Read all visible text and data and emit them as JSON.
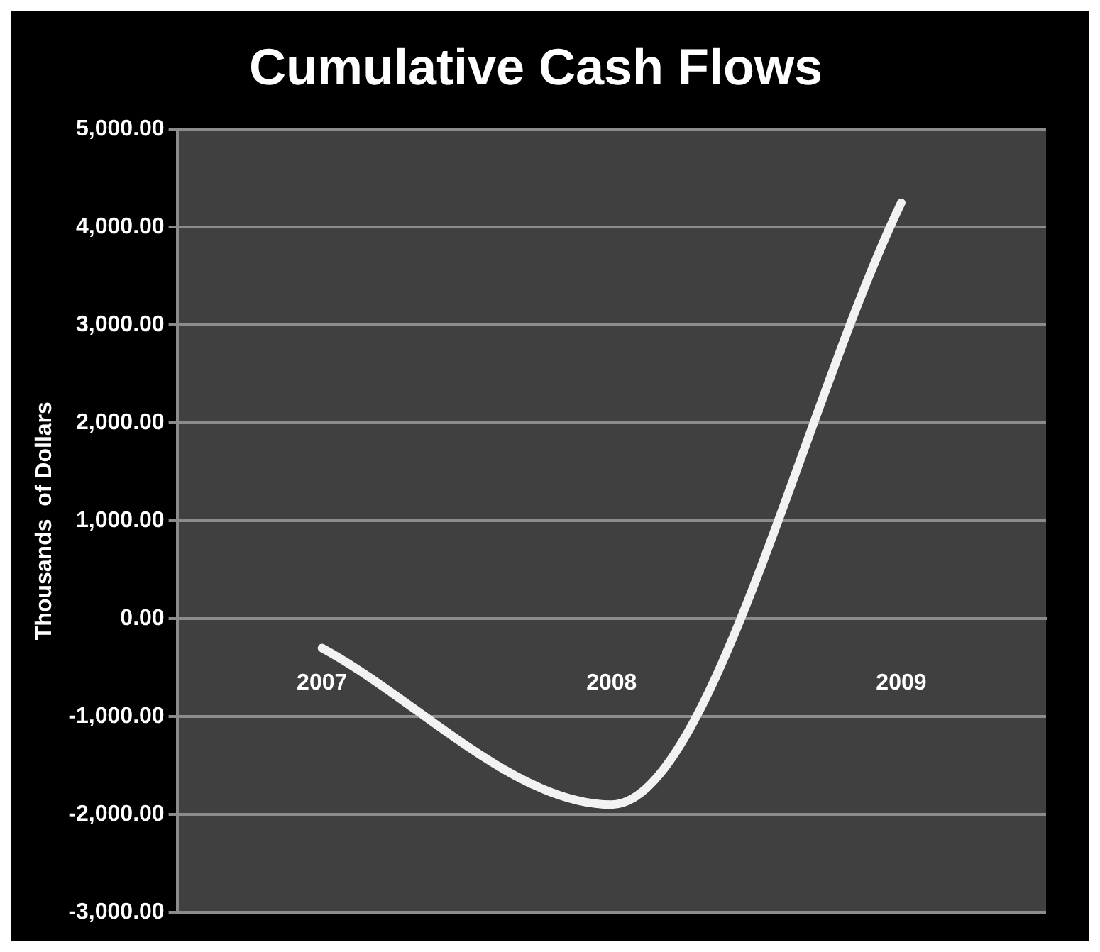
{
  "chart_data": {
    "type": "line",
    "title": "Cumulative Cash Flows",
    "ylabel": "Thousands  of Dollars",
    "categories": [
      "2007",
      "2008",
      "2009"
    ],
    "series": [
      {
        "color": "#f2f2f2",
        "values": [
          -300,
          -1900,
          4250
        ]
      }
    ],
    "ylim": [
      -3000,
      5000
    ],
    "yticks": [
      {
        "value": -3000,
        "label": "-3,000.00"
      },
      {
        "value": -2000,
        "label": "-2,000.00"
      },
      {
        "value": -1000,
        "label": "-1,000.00"
      },
      {
        "value": 0,
        "label": "0.00"
      },
      {
        "value": 1000,
        "label": "1,000.00"
      },
      {
        "value": 2000,
        "label": "2,000.00"
      },
      {
        "value": 3000,
        "label": "3,000.00"
      },
      {
        "value": 4000,
        "label": "4,000.00"
      },
      {
        "value": 5000,
        "label": "5,000.00"
      }
    ],
    "grid": "y",
    "legend": false,
    "marker": "none",
    "line_style": "solid"
  }
}
